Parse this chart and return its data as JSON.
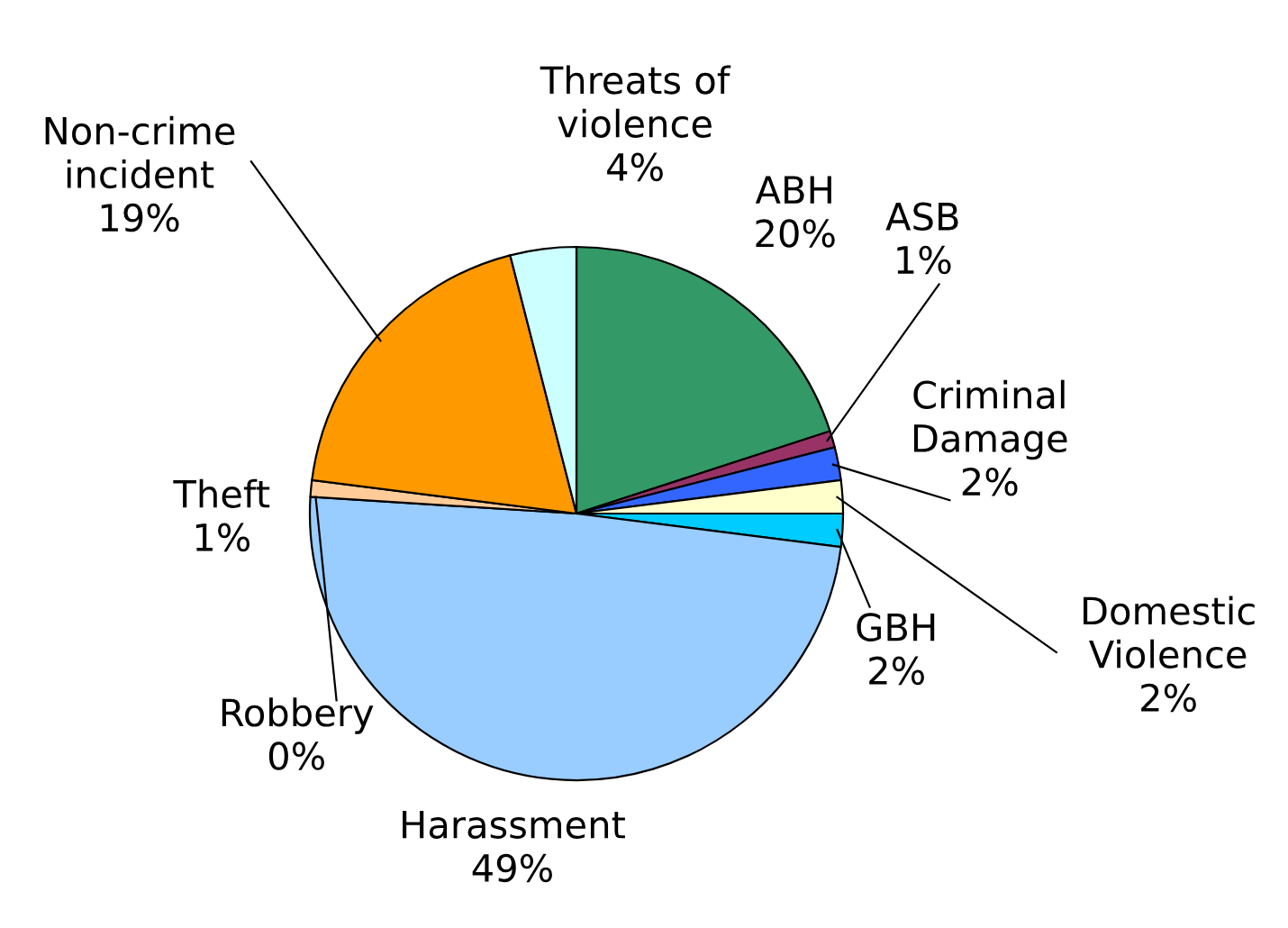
{
  "chart_data": {
    "type": "pie",
    "categories": [
      "ABH",
      "ASB",
      "Criminal\nDamage",
      "Domestic\nViolence",
      "GBH",
      "Harassment",
      "Robbery",
      "Theft",
      "Non-crime\nincident",
      "Threats of\nviolence"
    ],
    "values": [
      20,
      1,
      2,
      2,
      2,
      49,
      0,
      1,
      19,
      4
    ],
    "value_labels": [
      "20%",
      "1%",
      "2%",
      "2%",
      "2%",
      "49%",
      "0%",
      "1%",
      "19%",
      "4%"
    ],
    "colors": [
      "#339966",
      "#993366",
      "#3366ff",
      "#ffffcc",
      "#00ccff",
      "#99ccff",
      "#3366ff",
      "#ffcc99",
      "#ff9900",
      "#ccffff"
    ],
    "legend": false
  }
}
